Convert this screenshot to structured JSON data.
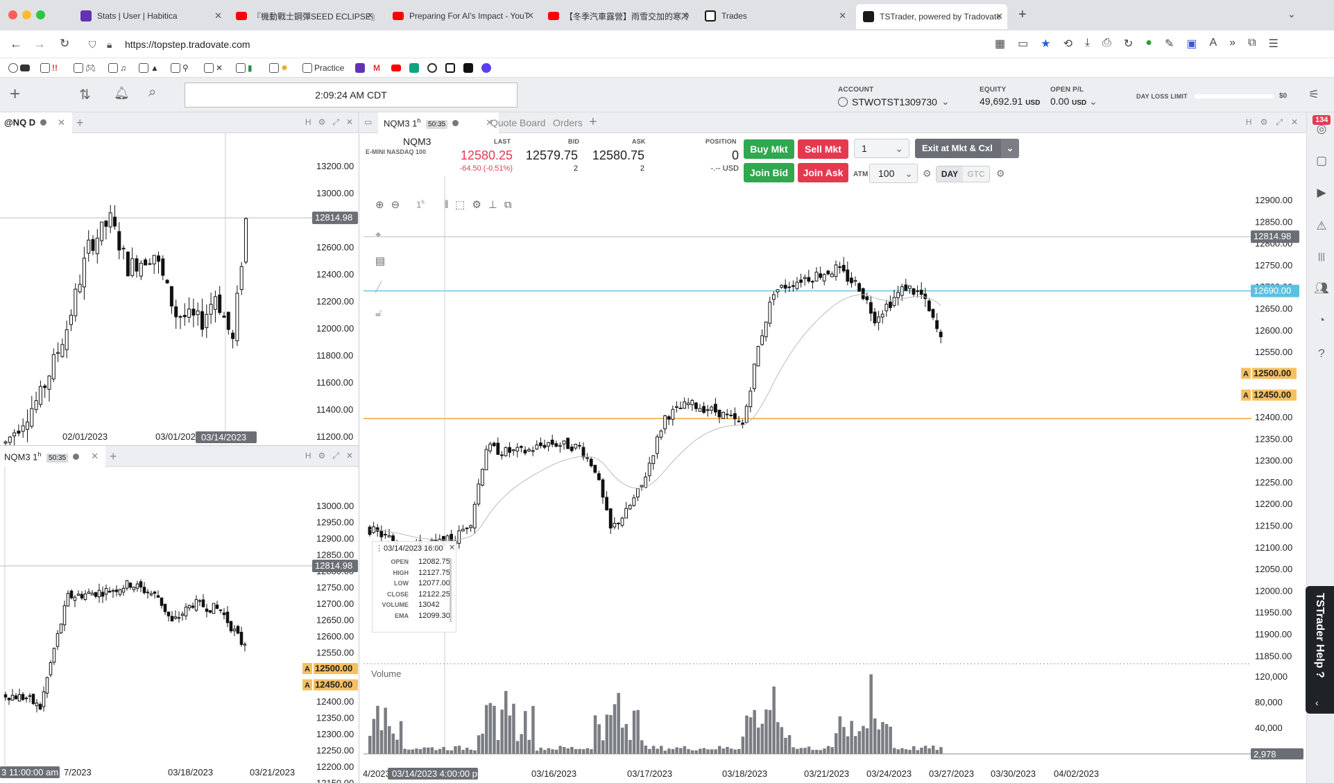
{
  "browser": {
    "tabs": [
      {
        "title": "Stats | User | Habitica",
        "color": "#6133b4"
      },
      {
        "title": "『機動戰士鋼彈SEED ECLIPSE』",
        "color": "#ff0000"
      },
      {
        "title": "Preparing For AI's Impact - YouT",
        "color": "#ff0000"
      },
      {
        "title": "【冬季汽車露營】雨雪交加的寒冷",
        "color": "#ff0000"
      },
      {
        "title": "Trades",
        "color": "#111111"
      },
      {
        "title": "TSTrader, powered by Tradovate",
        "color": "#1a1a1a"
      }
    ],
    "url": "https://topstep.tradovate.com",
    "bookmarks": {
      "practice": "Practice"
    }
  },
  "app": {
    "clock": "2:09:24 AM CDT",
    "account_label": "ACCOUNT",
    "account": "STWOTST1309730",
    "equity_label": "EQUITY",
    "equity": "49,692.91",
    "equity_unit": "USD",
    "openpl_label": "OPEN P/L",
    "openpl": "0.00",
    "openpl_unit": "USD",
    "daylimit_label": "DAY LOSS LIMIT",
    "daylimit_value": "$0"
  },
  "left_top": {
    "tab": "@NQ D",
    "price_tag": "12814.98",
    "yticks": [
      "13200.00",
      "13000.00",
      "12800.00",
      "12600.00",
      "12400.00",
      "12200.00",
      "12000.00",
      "11800.00",
      "11600.00",
      "11400.00",
      "11200.00"
    ],
    "xticks": [
      "02/01/2023",
      "03/01/202"
    ],
    "cursor_date": "03/14/2023"
  },
  "left_bottom": {
    "tab": "NQM3 1",
    "tab_sup": "h",
    "timer": "50:35",
    "price_tag": "12814.98",
    "yticks": [
      "13000.00",
      "12950.00",
      "12900.00",
      "12850.00",
      "12800.00",
      "12750.00",
      "12700.00",
      "12650.00",
      "12600.00",
      "12550.00",
      "12500.00",
      "12450.00",
      "12400.00",
      "12350.00",
      "12300.00",
      "12250.00",
      "12200.00",
      "12150.00"
    ],
    "tag_a": "A",
    "order1": "12500.00",
    "order2": "12450.00",
    "xticks": [
      "7/2023",
      "03/18/2023",
      "03/21/2023"
    ],
    "cursor_time": "3 11:00:00 am"
  },
  "main": {
    "tabs": {
      "chart": "NQM3 1",
      "chart_sup": "h",
      "timer": "50:35",
      "quote": "Quote Board",
      "orders": "Orders"
    },
    "symbol": "NQM3",
    "symbol_desc": "E-MINI NASDAQ 100",
    "last_label": "LAST",
    "last": "12580.25",
    "change": "-64.50 (-0.51%)",
    "bid_label": "BID",
    "bid": "12579.75",
    "bid_size": "2",
    "ask_label": "ASK",
    "ask": "12580.75",
    "ask_size": "2",
    "position_label": "POSITION",
    "position": "0",
    "position_pl": "-.-- USD",
    "buy_mkt": "Buy Mkt",
    "sell_mkt": "Sell Mkt",
    "join_bid": "Join Bid",
    "join_ask": "Join Ask",
    "qty": "1",
    "exit": "Exit at Mkt & Cxl",
    "atm_label": "ATM",
    "atm": "100",
    "day": "DAY",
    "gtc": "GTC",
    "interval": "1",
    "interval_sup": "h",
    "yticks": [
      "12900.00",
      "12850.00",
      "12800.00",
      "12750.00",
      "12700.00",
      "12650.00",
      "12600.00",
      "12550.00",
      "12500.00",
      "12450.00",
      "12400.00",
      "12350.00",
      "12300.00",
      "12250.00",
      "12200.00",
      "12150.00",
      "12100.00",
      "12050.00",
      "12000.00",
      "11950.00",
      "11900.00",
      "11850.00"
    ],
    "price_tag": "12814.98",
    "line_tag": "12690.00",
    "tag_a": "A",
    "order1": "12500.00",
    "order2": "12450.00",
    "volume_label": "Volume",
    "vticks": [
      "120,000",
      "80,000",
      "40,000"
    ],
    "vol_last": "2,978",
    "xticks": [
      "4/2023",
      "03/16/2023",
      "03/17/2023",
      "03/18/2023",
      "03/21/2023",
      "03/24/2023",
      "03/27/2023",
      "03/30/2023",
      "04/02/2023"
    ],
    "cursor_time": "03/14/2023 4:00:00 pm",
    "tooltip": {
      "date": "03/14/2023 16:00",
      "rows": [
        [
          "OPEN",
          "12082.75"
        ],
        [
          "HIGH",
          "12127.75"
        ],
        [
          "LOW",
          "12077.00"
        ],
        [
          "CLOSE",
          "12122.25"
        ],
        [
          "VOLUME",
          "13042"
        ],
        [
          "EMA",
          "12099.30"
        ]
      ]
    }
  },
  "help_tab": "TSTrader Help ?",
  "badge": "134",
  "colors": {
    "green": "#2fa84f",
    "red": "#e53950",
    "orange": "#f0a030",
    "blue_line": "#5bc0e0",
    "tag_grey": "#6b6f75",
    "tag_orange": "#f5c060"
  }
}
